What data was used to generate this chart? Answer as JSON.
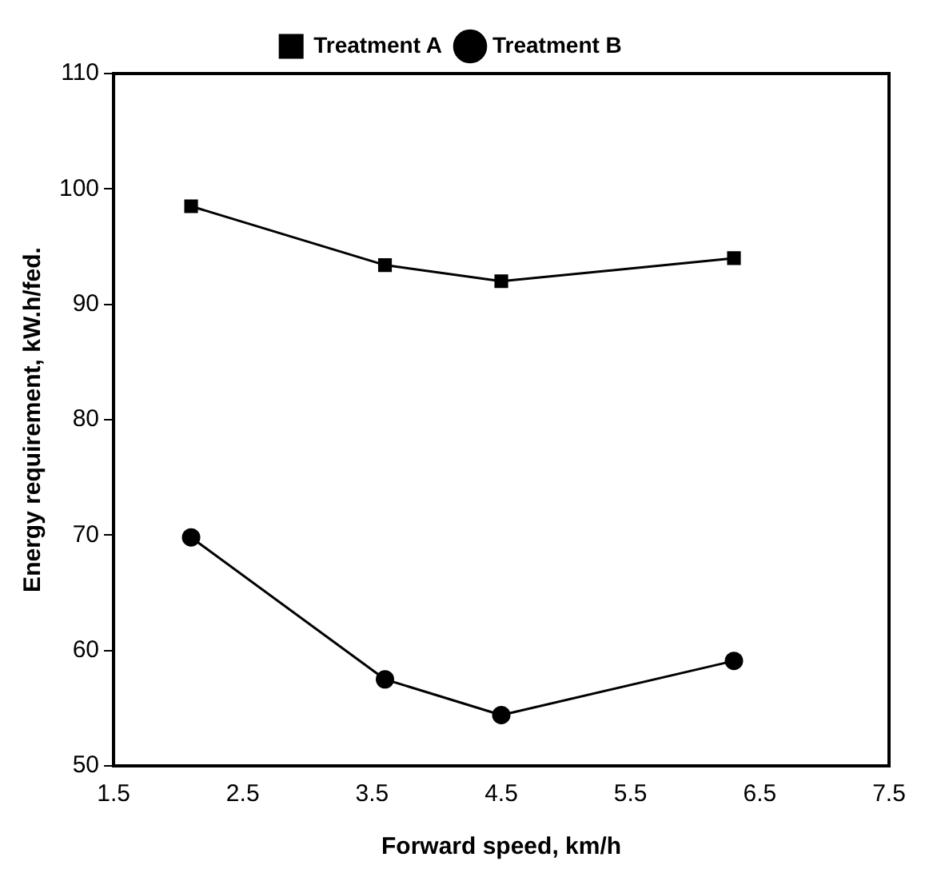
{
  "chart_data": {
    "type": "line",
    "xlabel": "Forward speed, km/h",
    "ylabel": "Energy requirement, kW.h/fed.",
    "x": [
      2.1,
      3.6,
      4.5,
      6.3
    ],
    "series": [
      {
        "name": "Treatment A",
        "color": "#000000",
        "marker": "square",
        "values": [
          98.5,
          93.4,
          92.0,
          94.0
        ]
      },
      {
        "name": "Treatment B",
        "color": "#000000",
        "marker": "circle",
        "values": [
          69.8,
          57.5,
          54.4,
          59.1
        ]
      }
    ],
    "xlim": [
      1.5,
      7.5
    ],
    "xticks": [
      1.5,
      2.5,
      3.5,
      4.5,
      5.5,
      6.5,
      7.5
    ],
    "ylim": [
      50,
      110
    ],
    "yticks": [
      50,
      60,
      70,
      80,
      90,
      100,
      110
    ],
    "grid": false,
    "legend": "top",
    "line_style": "solid"
  }
}
